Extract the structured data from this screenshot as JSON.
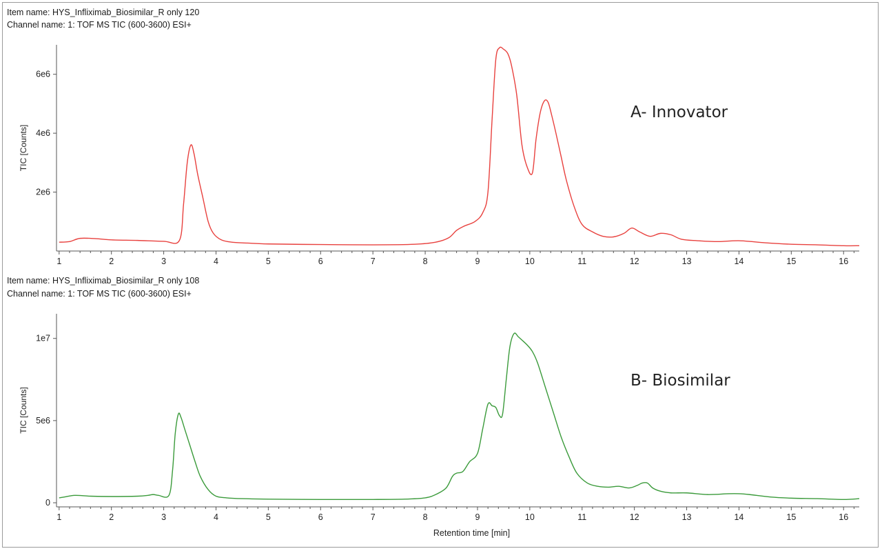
{
  "chart_data": [
    {
      "type": "line",
      "item_name": "Item name: HYS_Infliximab_Biosimilar_R only 120",
      "channel_name": "Channel name: 1: TOF MS TIC (600-3600) ESI+",
      "ylabel": "TIC [Counts]",
      "xlabel": "",
      "annotation": "A- Innovator",
      "series_color": "#e8403d",
      "xlim": [
        0.95,
        16.3
      ],
      "ylim": [
        0,
        7000000
      ],
      "x_ticks": [
        1,
        2,
        3,
        4,
        5,
        6,
        7,
        8,
        9,
        10,
        11,
        12,
        13,
        14,
        15,
        16
      ],
      "y_ticks": [
        {
          "value": 2000000,
          "label": "2e6"
        },
        {
          "value": 4000000,
          "label": "4e6"
        },
        {
          "value": 6000000,
          "label": "6e6"
        }
      ],
      "series": [
        {
          "x": [
            1.0,
            1.2,
            1.4,
            1.7,
            2.0,
            2.5,
            3.0,
            3.3,
            3.38,
            3.45,
            3.52,
            3.58,
            3.65,
            3.75,
            3.85,
            3.95,
            4.1,
            4.3,
            4.6,
            5.0,
            6.0,
            7.0,
            7.8,
            8.2,
            8.45,
            8.6,
            8.75,
            8.95,
            9.1,
            9.2,
            9.28,
            9.35,
            9.42,
            9.5,
            9.58,
            9.65,
            9.75,
            9.85,
            9.95,
            10.05,
            10.12,
            10.2,
            10.28,
            10.35,
            10.42,
            10.5,
            10.6,
            10.7,
            10.85,
            11.0,
            11.2,
            11.4,
            11.6,
            11.8,
            11.95,
            12.1,
            12.3,
            12.5,
            12.7,
            12.9,
            13.2,
            13.6,
            14.0,
            14.5,
            15.0,
            15.5,
            16.0,
            16.3
          ],
          "y": [
            300000,
            320000,
            430000,
            420000,
            380000,
            360000,
            330000,
            360000,
            1600000,
            3000000,
            3600000,
            3300000,
            2600000,
            1800000,
            1000000,
            600000,
            380000,
            300000,
            270000,
            240000,
            220000,
            210000,
            230000,
            300000,
            450000,
            700000,
            850000,
            1000000,
            1300000,
            2000000,
            4500000,
            6500000,
            6900000,
            6850000,
            6700000,
            6300000,
            5300000,
            3600000,
            2850000,
            2650000,
            3800000,
            4700000,
            5100000,
            5050000,
            4600000,
            4000000,
            3200000,
            2400000,
            1500000,
            900000,
            650000,
            500000,
            480000,
            600000,
            780000,
            650000,
            500000,
            600000,
            550000,
            400000,
            350000,
            320000,
            350000,
            280000,
            230000,
            210000,
            180000,
            180000
          ]
        }
      ]
    },
    {
      "type": "line",
      "item_name": "Item name: HYS_Infliximab_Biosimilar_R only 108",
      "channel_name": "Channel name: 1: TOF MS TIC (600-3600) ESI+",
      "ylabel": "TIC [Counts]",
      "xlabel": "Retention time [min]",
      "annotation": "B- Biosimilar",
      "series_color": "#3a9a3a",
      "xlim": [
        0.95,
        16.3
      ],
      "ylim": [
        -250000,
        11500000
      ],
      "x_ticks": [
        1,
        2,
        3,
        4,
        5,
        6,
        7,
        8,
        9,
        10,
        11,
        12,
        13,
        14,
        15,
        16
      ],
      "y_ticks": [
        {
          "value": 0,
          "label": "0"
        },
        {
          "value": 5000000,
          "label": "5e6"
        },
        {
          "value": 10000000,
          "label": "1e7"
        }
      ],
      "series": [
        {
          "x": [
            1.0,
            1.1,
            1.3,
            1.6,
            2.0,
            2.5,
            2.7,
            2.8,
            2.9,
            3.1,
            3.17,
            3.22,
            3.28,
            3.33,
            3.4,
            3.5,
            3.6,
            3.7,
            3.85,
            4.0,
            4.2,
            4.5,
            5.0,
            6.0,
            7.0,
            7.6,
            8.0,
            8.2,
            8.4,
            8.52,
            8.6,
            8.72,
            8.85,
            9.0,
            9.1,
            9.2,
            9.28,
            9.35,
            9.42,
            9.48,
            9.55,
            9.62,
            9.7,
            9.78,
            9.85,
            9.95,
            10.05,
            10.15,
            10.3,
            10.45,
            10.6,
            10.75,
            10.9,
            11.1,
            11.3,
            11.5,
            11.7,
            11.9,
            12.05,
            12.15,
            12.25,
            12.35,
            12.5,
            12.7,
            13.0,
            13.4,
            13.8,
            14.0,
            14.2,
            14.6,
            15.0,
            15.5,
            16.0,
            16.3
          ],
          "y": [
            300000,
            350000,
            450000,
            400000,
            380000,
            400000,
            450000,
            500000,
            450000,
            450000,
            2000000,
            4200000,
            5400000,
            5200000,
            4500000,
            3500000,
            2500000,
            1600000,
            800000,
            400000,
            300000,
            250000,
            220000,
            200000,
            200000,
            220000,
            300000,
            500000,
            900000,
            1600000,
            1800000,
            1900000,
            2500000,
            3000000,
            4500000,
            6000000,
            5900000,
            5800000,
            5300000,
            5400000,
            7500000,
            9500000,
            10300000,
            10100000,
            9900000,
            9600000,
            9200000,
            8500000,
            7000000,
            5500000,
            4000000,
            2800000,
            1800000,
            1200000,
            1000000,
            950000,
            1000000,
            900000,
            1050000,
            1200000,
            1200000,
            900000,
            700000,
            600000,
            600000,
            500000,
            550000,
            550000,
            500000,
            350000,
            280000,
            250000,
            200000,
            250000
          ]
        }
      ]
    }
  ]
}
